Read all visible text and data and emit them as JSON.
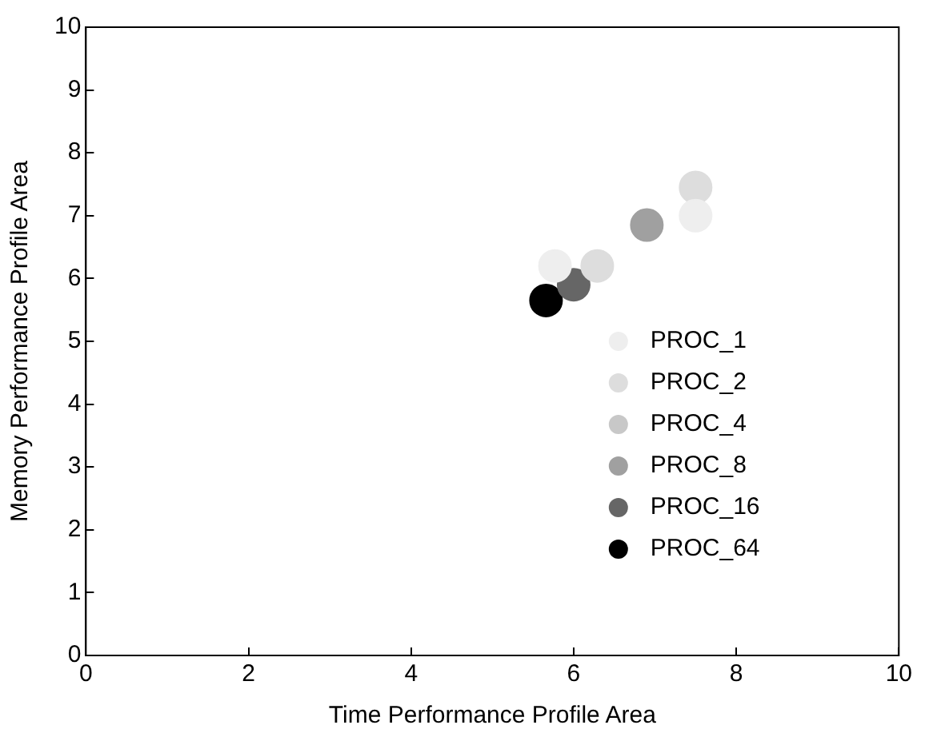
{
  "chart_data": {
    "type": "scatter",
    "xlabel": "Time Performance Profile Area",
    "ylabel": "Memory Performance Profile Area",
    "xlim": [
      0,
      10
    ],
    "xticks": [
      0,
      2,
      4,
      6,
      8,
      10
    ],
    "ylim": [
      0,
      10
    ],
    "yticks": [
      0,
      1,
      2,
      3,
      4,
      5,
      6,
      7,
      8,
      9,
      10
    ],
    "grid": false,
    "legend": "right",
    "marker": "circle",
    "series": [
      {
        "name": "PROC_1",
        "color": "#eeeeee",
        "x": [
          7.5,
          5.77
        ],
        "values": [
          7.0,
          6.2
        ]
      },
      {
        "name": "PROC_2",
        "color": "#dddddd",
        "x": [
          7.5,
          6.29
        ],
        "values": [
          7.45,
          6.2
        ]
      },
      {
        "name": "PROC_4",
        "color": "#c8c8c8"
      },
      {
        "name": "PROC_8",
        "color": "#a0a0a0",
        "x": [
          6.9
        ],
        "values": [
          6.85
        ]
      },
      {
        "name": "PROC_16",
        "color": "#666666",
        "x": [
          6.0
        ],
        "values": [
          5.9
        ]
      },
      {
        "name": "PROC_64",
        "color": "#000000",
        "x": [
          5.66
        ],
        "values": [
          5.65
        ]
      }
    ]
  }
}
